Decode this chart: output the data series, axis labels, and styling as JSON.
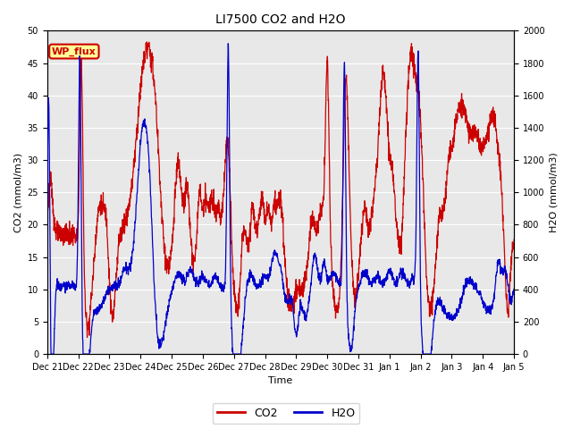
{
  "title": "LI7500 CO2 and H2O",
  "xlabel": "Time",
  "ylabel_left": "CO2 (mmol/m3)",
  "ylabel_right": "H2O (mmol/m3)",
  "co2_color": "#cc0000",
  "h2o_color": "#0000cc",
  "ylim_left": [
    0,
    50
  ],
  "ylim_right": [
    0,
    2000
  ],
  "yticks_left": [
    0,
    5,
    10,
    15,
    20,
    25,
    30,
    35,
    40,
    45,
    50
  ],
  "yticks_right": [
    0,
    200,
    400,
    600,
    800,
    1000,
    1200,
    1400,
    1600,
    1800,
    2000
  ],
  "xtick_labels": [
    "Dec 21",
    "Dec 22",
    "Dec 23",
    "Dec 24",
    "Dec 25",
    "Dec 26",
    "Dec 27",
    "Dec 28",
    "Dec 29",
    "Dec 30",
    "Dec 31",
    "Jan 1",
    "Jan 2",
    "Jan 3",
    "Jan 4",
    "Jan 5"
  ],
  "annotation_text": "WP_flux",
  "annotation_color": "#cc0000",
  "annotation_bg": "#ffff99",
  "background_color": "#e8e8e8",
  "grid_color": "#ffffff",
  "legend_co2": "CO2",
  "legend_h2o": "H2O",
  "figsize": [
    6.4,
    4.8
  ],
  "dpi": 100
}
